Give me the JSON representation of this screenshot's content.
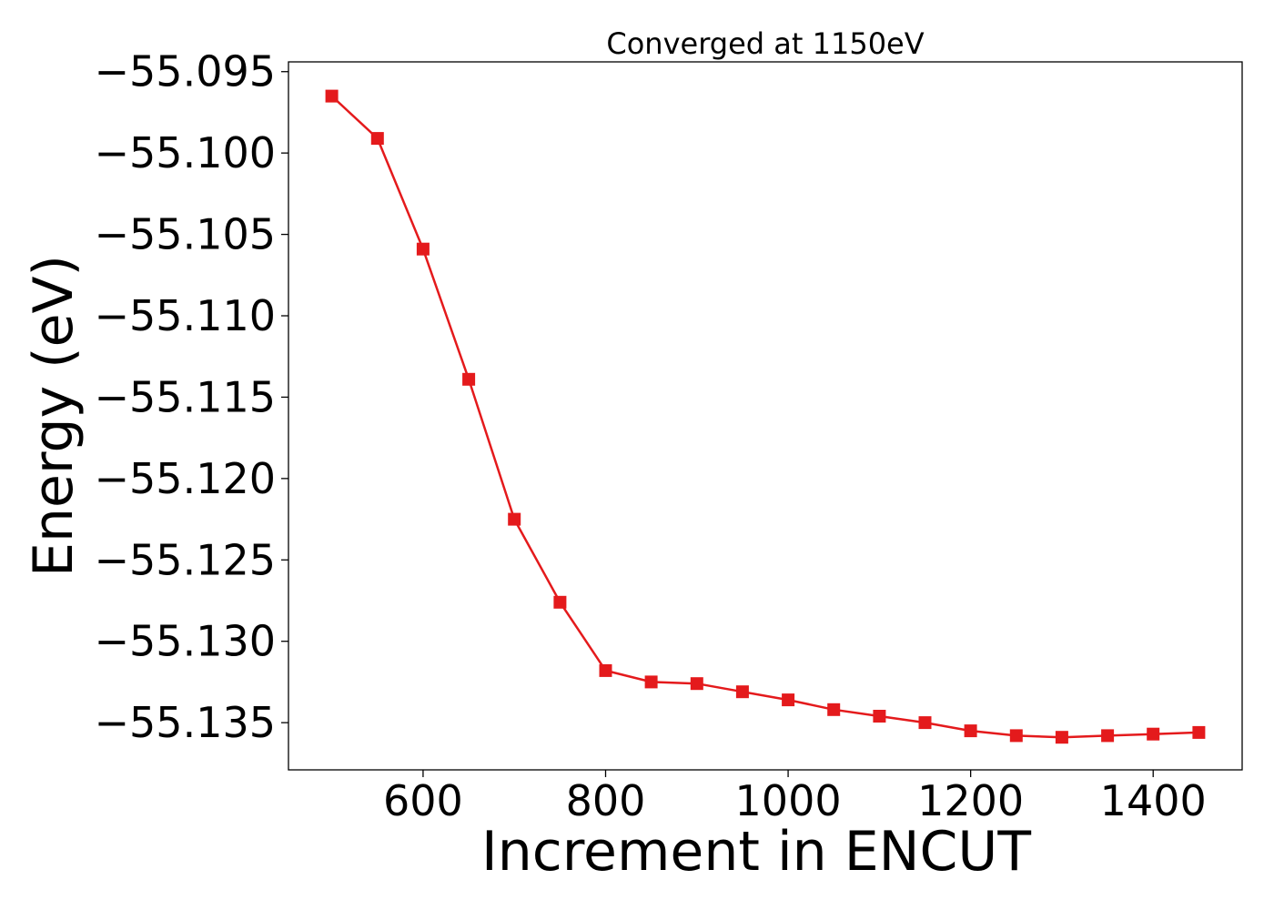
{
  "chart_data": {
    "type": "line",
    "title": "Converged at 1150eV",
    "xlabel": "Increment in ENCUT",
    "ylabel": "Energy (eV)",
    "xlim": [
      452.5,
      1497.5
    ],
    "ylim": [
      -55.1379,
      -55.0944
    ],
    "xticks": [
      600,
      800,
      1000,
      1200,
      1400
    ],
    "xtick_labels": [
      "600",
      "800",
      "1000",
      "1200",
      "1400"
    ],
    "yticks": [
      -55.095,
      -55.1,
      -55.105,
      -55.11,
      -55.115,
      -55.12,
      -55.125,
      -55.13,
      -55.135
    ],
    "ytick_labels": [
      "−55.095",
      "−55.100",
      "−55.105",
      "−55.110",
      "−55.115",
      "−55.120",
      "−55.125",
      "−55.130",
      "−55.135"
    ],
    "grid": false,
    "color": "#e41a1c",
    "marker": "square",
    "x": [
      500,
      550,
      600,
      650,
      700,
      750,
      800,
      850,
      900,
      950,
      1000,
      1050,
      1100,
      1150,
      1200,
      1250,
      1300,
      1350,
      1400,
      1450
    ],
    "y": [
      -55.0965,
      -55.0991,
      -55.1059,
      -55.1139,
      -55.1225,
      -55.1276,
      -55.1318,
      -55.1325,
      -55.1326,
      -55.1331,
      -55.1336,
      -55.1342,
      -55.1346,
      -55.135,
      -55.1355,
      -55.1358,
      -55.1359,
      -55.1358,
      -55.1357,
      -55.1356
    ]
  }
}
